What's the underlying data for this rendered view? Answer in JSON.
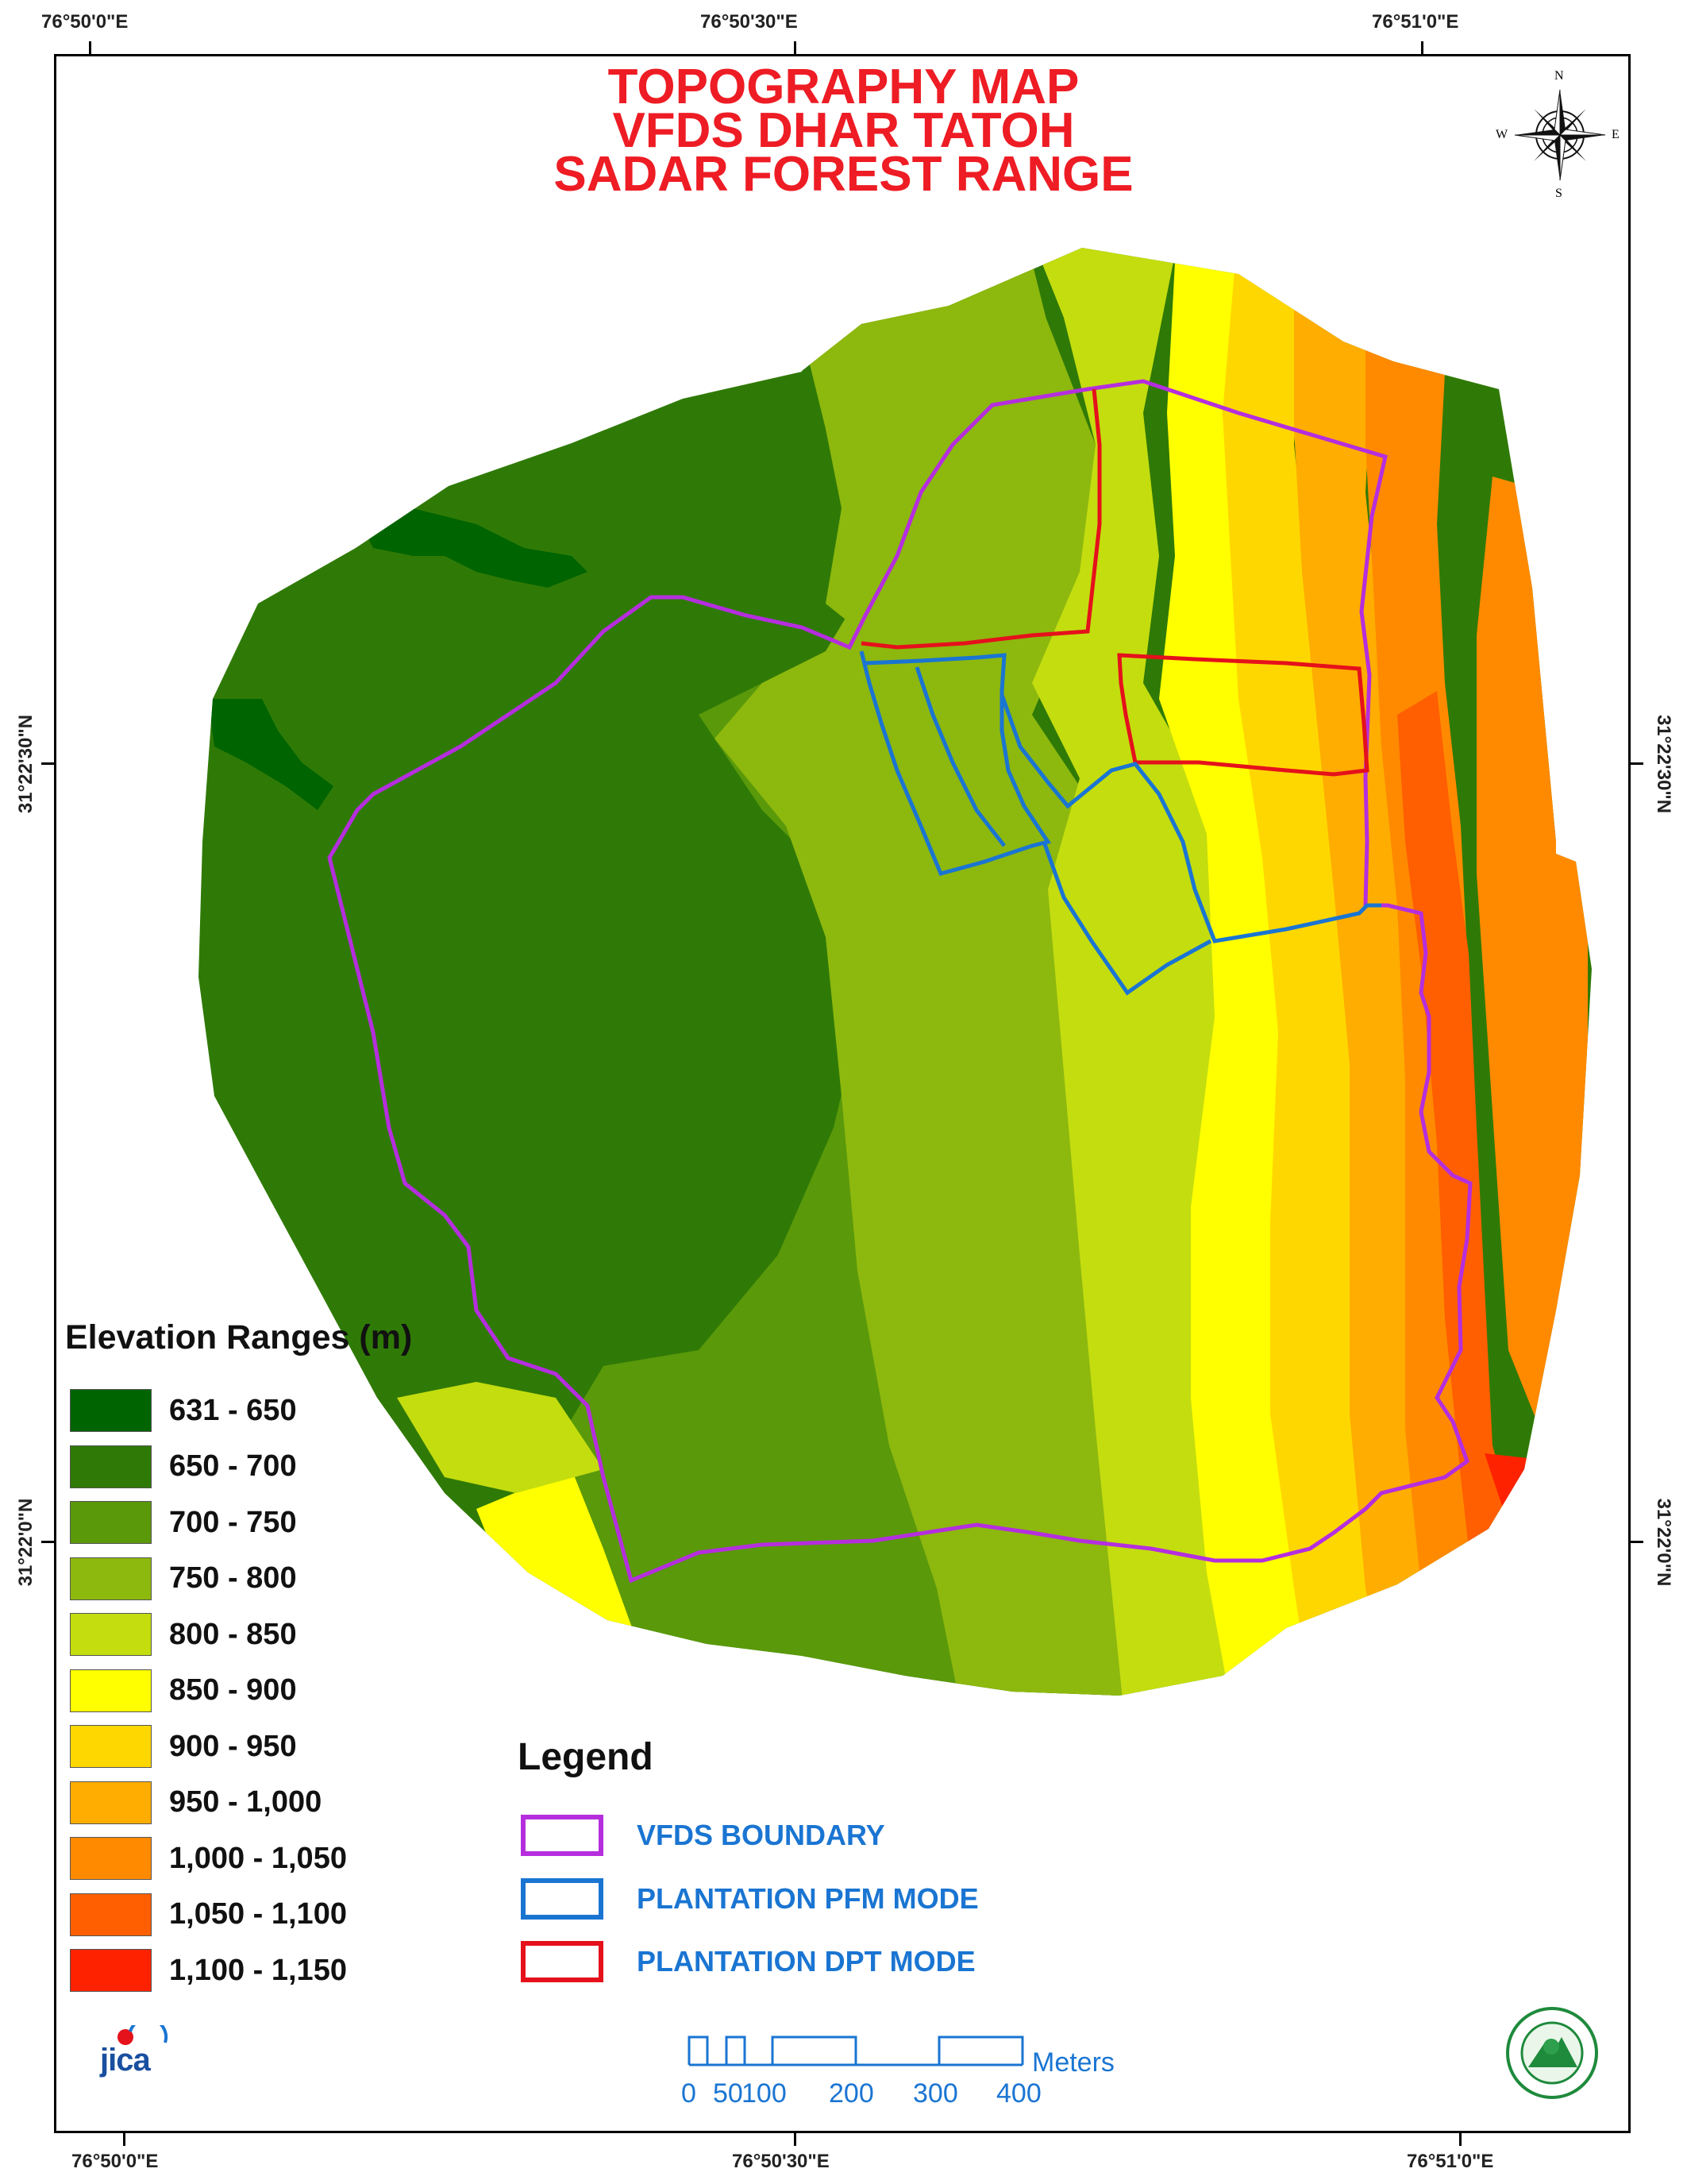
{
  "map": {
    "title_lines": [
      "TOPOGRAPHY MAP",
      "VFDS DHAR TATOH",
      "SADAR FOREST RANGE"
    ],
    "top_longitude_labels": [
      "76°50'0\"E",
      "76°50'30\"E",
      "76°51'0\"E"
    ],
    "bottom_longitude_labels": [
      "76°50'0\"E",
      "76°50'30\"E",
      "76°51'0\"E"
    ],
    "left_latitude_labels": [
      "31°22'30\"N",
      "31°22'0\"N"
    ],
    "right_latitude_labels": [
      "31°22'30\"N",
      "31°22'0\"N"
    ],
    "north_arrow": {
      "n": "N",
      "s": "S",
      "e": "E",
      "w": "W",
      "icon": "compass-rose-icon"
    }
  },
  "elevation_legend": {
    "title": "Elevation Ranges (m)",
    "classes": [
      {
        "label": "631 - 650",
        "color": "#006400"
      },
      {
        "label": "650 - 700",
        "color": "#2f7a06"
      },
      {
        "label": "700 - 750",
        "color": "#5a990a"
      },
      {
        "label": "750 - 800",
        "color": "#8db80e"
      },
      {
        "label": "800 - 850",
        "color": "#c4dd0f"
      },
      {
        "label": "850 - 900",
        "color": "#ffff00"
      },
      {
        "label": "900 - 950",
        "color": "#ffd700"
      },
      {
        "label": "950 - 1,000",
        "color": "#ffad00"
      },
      {
        "label": "1,000 - 1,050",
        "color": "#ff8a00"
      },
      {
        "label": "1,050 - 1,100",
        "color": "#ff5f00"
      },
      {
        "label": "1,100 - 1,150",
        "color": "#ff2200"
      }
    ]
  },
  "legend": {
    "title": "Legend",
    "items": [
      {
        "label": "VFDS BOUNDARY",
        "color": "#b52ede"
      },
      {
        "label": "PLANTATION PFM MODE",
        "color": "#1a75d2"
      },
      {
        "label": "PLANTATION DPT MODE",
        "color": "#e5111b"
      }
    ]
  },
  "scale_bar": {
    "unit": "Meters",
    "labels": [
      "0",
      "50",
      "100",
      "200",
      "300",
      "400"
    ]
  },
  "logos": {
    "left": "jica",
    "left_icon": "jica-logo-icon",
    "right_icon": "forest-department-seal-icon"
  }
}
